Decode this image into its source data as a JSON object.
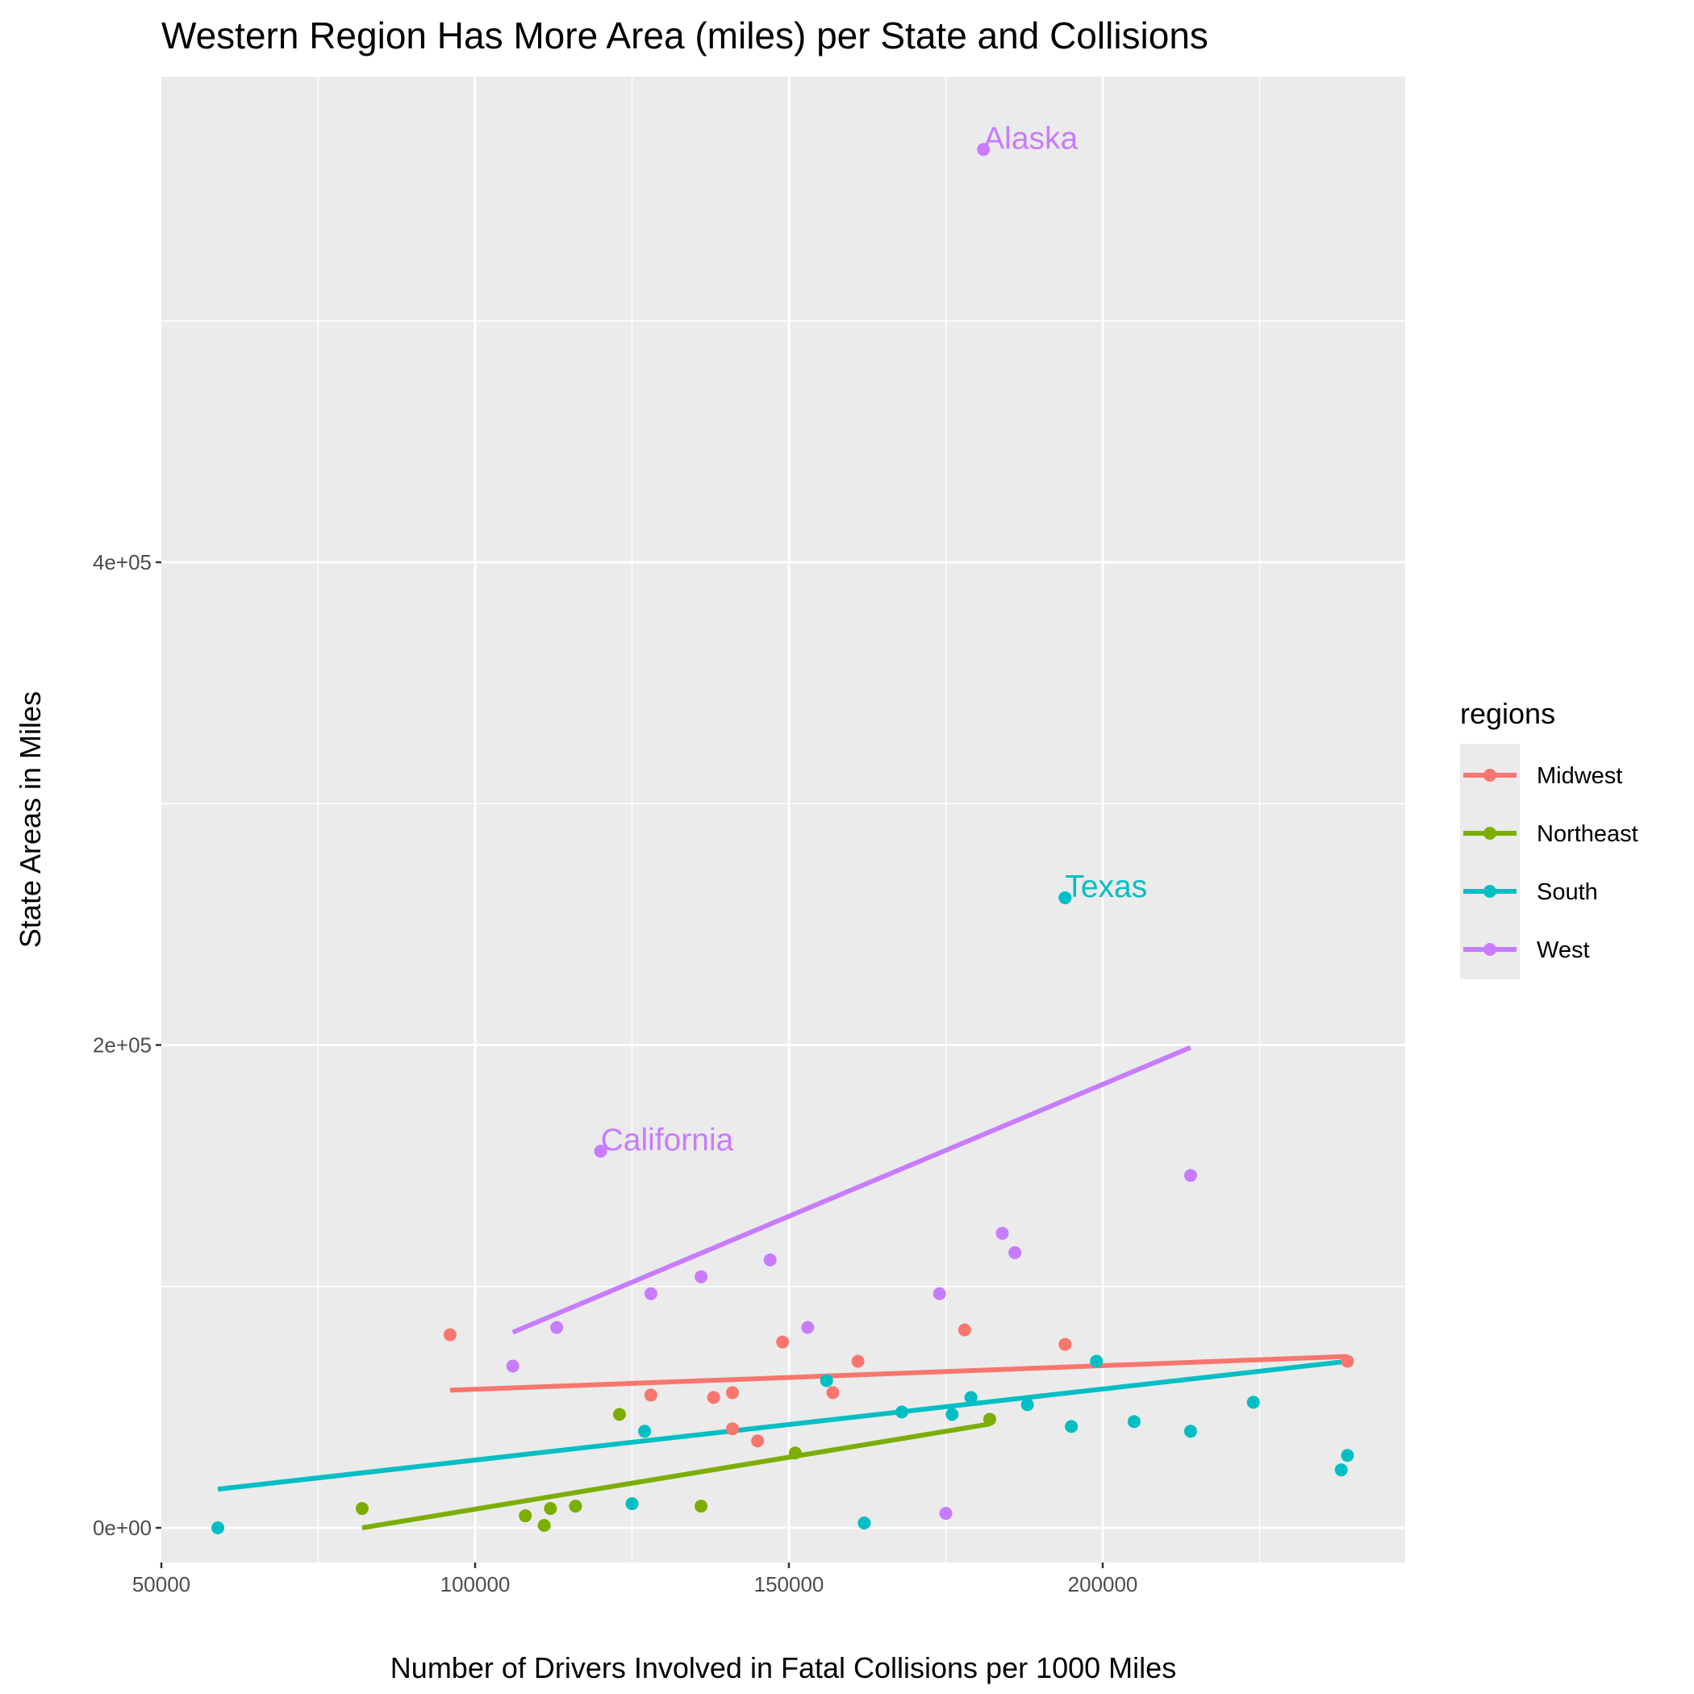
{
  "chart_data": {
    "type": "scatter",
    "title": "Western Region Has More Area (miles) per State and Collisions",
    "xlabel": "Number of Drivers Involved in Fatal Collisions per 1000 Miles",
    "ylabel": "State Areas in Miles",
    "xlim": [
      50000,
      248000
    ],
    "ylim": [
      -25000,
      600000
    ],
    "x_ticks": [
      50000,
      100000,
      150000,
      200000
    ],
    "x_tick_labels": [
      "50000",
      "100000",
      "150000",
      "200000"
    ],
    "y_ticks": [
      0,
      200000,
      400000
    ],
    "y_tick_labels": [
      "0e+00",
      "2e+05",
      "4e+05"
    ],
    "grid": true,
    "legend": {
      "title": "regions",
      "position": "right"
    },
    "series": [
      {
        "name": "Midwest",
        "color": "#F8766D",
        "points": [
          [
            96000,
            80000
          ],
          [
            128000,
            55000
          ],
          [
            138000,
            54000
          ],
          [
            141000,
            56000
          ],
          [
            141000,
            41000
          ],
          [
            145000,
            36000
          ],
          [
            149000,
            77000
          ],
          [
            157000,
            56000
          ],
          [
            161000,
            69000
          ],
          [
            178000,
            82000
          ],
          [
            194000,
            76000
          ],
          [
            239000,
            69000
          ]
        ],
        "trend": [
          [
            96000,
            57000
          ],
          [
            239000,
            71000
          ]
        ]
      },
      {
        "name": "Northeast",
        "color": "#7CAE00",
        "points": [
          [
            82000,
            8000
          ],
          [
            108000,
            5000
          ],
          [
            111000,
            1000
          ],
          [
            112000,
            8000
          ],
          [
            116000,
            9000
          ],
          [
            123000,
            47000
          ],
          [
            136000,
            9000
          ],
          [
            151000,
            31000
          ],
          [
            182000,
            45000
          ]
        ],
        "trend": [
          [
            82000,
            0
          ],
          [
            182000,
            43000
          ]
        ]
      },
      {
        "name": "South",
        "color": "#00BFC4",
        "points": [
          [
            59000,
            0
          ],
          [
            125000,
            10000
          ],
          [
            127000,
            40000
          ],
          [
            156000,
            61000
          ],
          [
            162000,
            2000
          ],
          [
            168000,
            48000
          ],
          [
            176000,
            47000
          ],
          [
            179000,
            54000
          ],
          [
            188000,
            51000
          ],
          [
            194000,
            261000
          ],
          [
            195000,
            42000
          ],
          [
            199000,
            69000
          ],
          [
            205000,
            44000
          ],
          [
            214000,
            40000
          ],
          [
            224000,
            52000
          ],
          [
            238000,
            24000
          ],
          [
            239000,
            30000
          ]
        ],
        "trend": [
          [
            59000,
            16000
          ],
          [
            239000,
            69000
          ]
        ]
      },
      {
        "name": "West",
        "color": "#C77CFF",
        "points": [
          [
            106000,
            67000
          ],
          [
            113000,
            83000
          ],
          [
            120000,
            156000
          ],
          [
            128000,
            97000
          ],
          [
            136000,
            104000
          ],
          [
            147000,
            111000
          ],
          [
            153000,
            83000
          ],
          [
            174000,
            97000
          ],
          [
            175000,
            6000
          ],
          [
            181000,
            571000
          ],
          [
            184000,
            122000
          ],
          [
            186000,
            114000
          ],
          [
            214000,
            146000
          ]
        ],
        "trend": [
          [
            106000,
            81000
          ],
          [
            214000,
            199000
          ]
        ]
      }
    ],
    "annotations": [
      {
        "text": "Alaska",
        "x": 181000,
        "y": 571000,
        "series": "West"
      },
      {
        "text": "Texas",
        "x": 194000,
        "y": 261000,
        "series": "South"
      },
      {
        "text": "California",
        "x": 120000,
        "y": 156000,
        "series": "West"
      }
    ]
  }
}
